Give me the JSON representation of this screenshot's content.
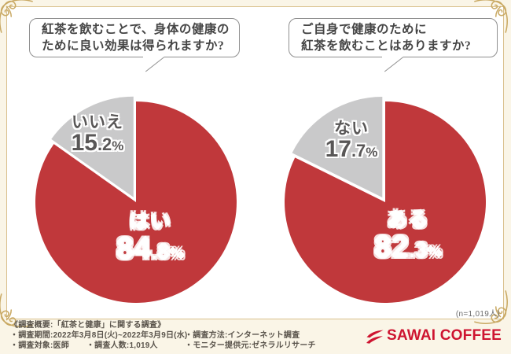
{
  "bubbles": [
    {
      "line1": "紅茶を飲むことで、身体の健康の",
      "line2": "ために良い効果は得られますか?"
    },
    {
      "line1": "ご自身で健康のために",
      "line2": "紅茶を飲むことはありますか?"
    }
  ],
  "chart_data": [
    {
      "type": "pie",
      "question": "紅茶を飲むことで、身体の健康のために良い効果は得られますか?",
      "unit": "%",
      "direction": "clockwise",
      "start_angle_deg": 0,
      "slices": [
        {
          "label": "はい",
          "value": 84.8,
          "color": "#c0383b"
        },
        {
          "label": "いいえ",
          "value": 15.2,
          "color": "#c9c9ca",
          "exploded": true
        }
      ]
    },
    {
      "type": "pie",
      "question": "ご自身で健康のために紅茶を飲むことはありますか?",
      "unit": "%",
      "direction": "clockwise",
      "start_angle_deg": 0,
      "slices": [
        {
          "label": "ある",
          "value": 82.3,
          "color": "#c0383b"
        },
        {
          "label": "ない",
          "value": 17.7,
          "color": "#c9c9ca",
          "exploded": true
        }
      ]
    }
  ],
  "survey": {
    "title": "《調査概要:「紅茶と健康」に関する調査》",
    "period": "・調査期間:2022年3月8日(火)~2022年3月9日(水)",
    "target": "・調査対象:医師",
    "count": "・調査人数:1,019人",
    "method": "・調査方法:インターネット調査",
    "monitor": "・モニター提供元:ゼネラルリサーチ"
  },
  "sample_note": "(n=1,019人)",
  "logo": {
    "text": "SAWAI COFFEE",
    "color": "#ce1430"
  },
  "colors": {
    "pie_red": "#c0383b",
    "pie_gray": "#c9c9ca",
    "frame": "#d9c08d",
    "flourish": "#c9a963",
    "background": "#faf5e7"
  }
}
